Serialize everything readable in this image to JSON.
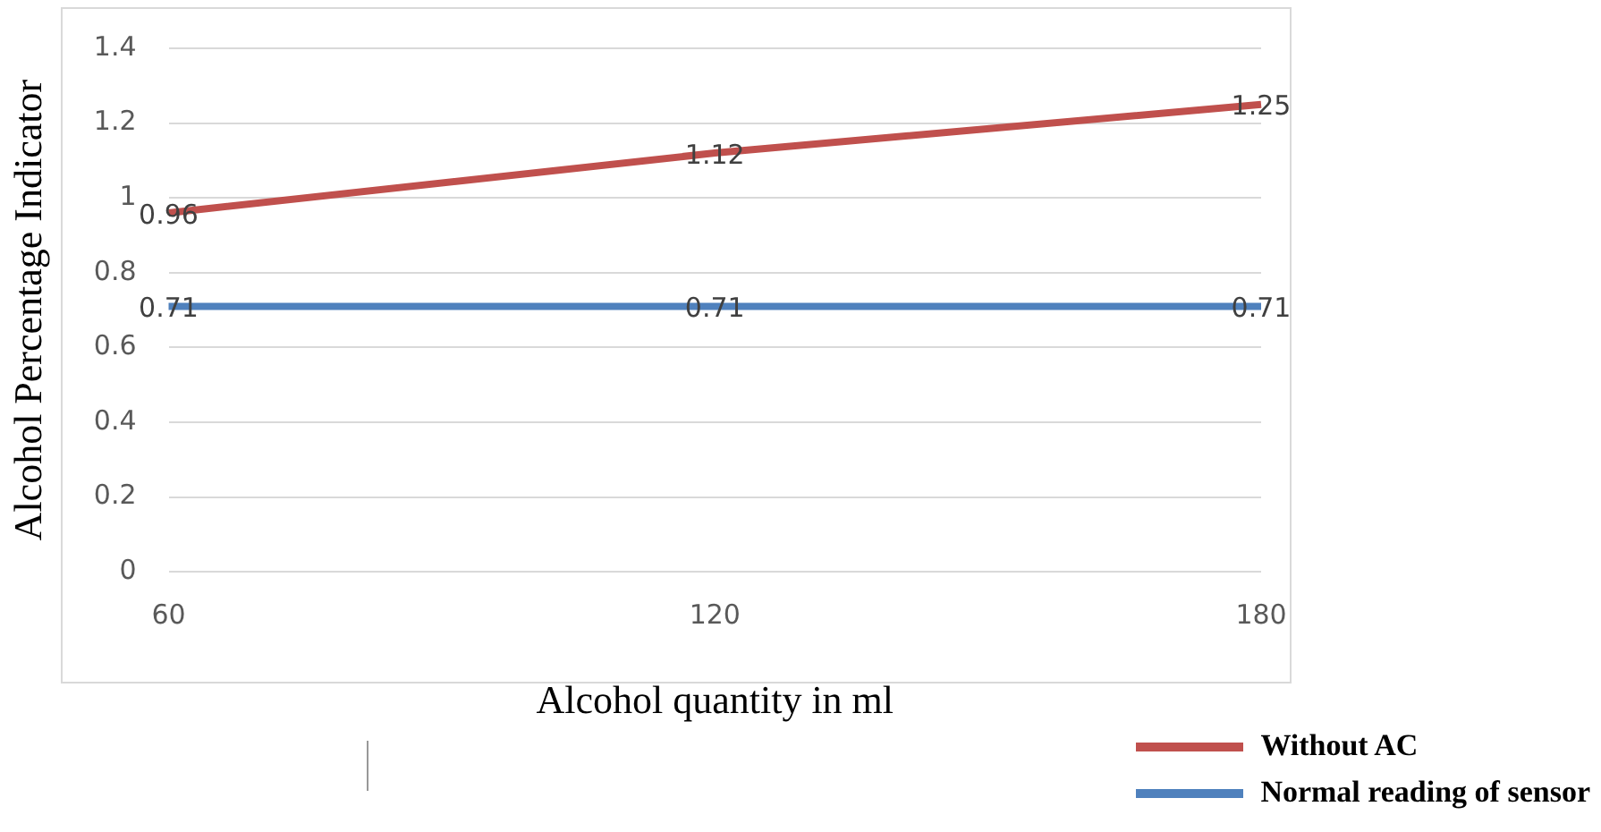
{
  "chart_data": {
    "type": "line",
    "xlabel": "Alcohol quantity in ml",
    "ylabel": "Alcohol Percentage Indicator",
    "categories": [
      "60",
      "120",
      "180"
    ],
    "series": [
      {
        "name": "Without AC",
        "color": "#c0504d",
        "values": [
          0.96,
          1.12,
          1.25
        ]
      },
      {
        "name": "Normal reading of sensor",
        "color": "#4f81bd",
        "values": [
          0.71,
          0.71,
          0.71
        ]
      }
    ],
    "ylim": [
      0,
      1.4
    ],
    "yticks": [
      0,
      0.2,
      0.4,
      0.6,
      0.8,
      1,
      1.2,
      1.4
    ],
    "grid": "y",
    "legend": "bottom right",
    "data_labels": true,
    "marker": "none",
    "line_style": "solid"
  }
}
